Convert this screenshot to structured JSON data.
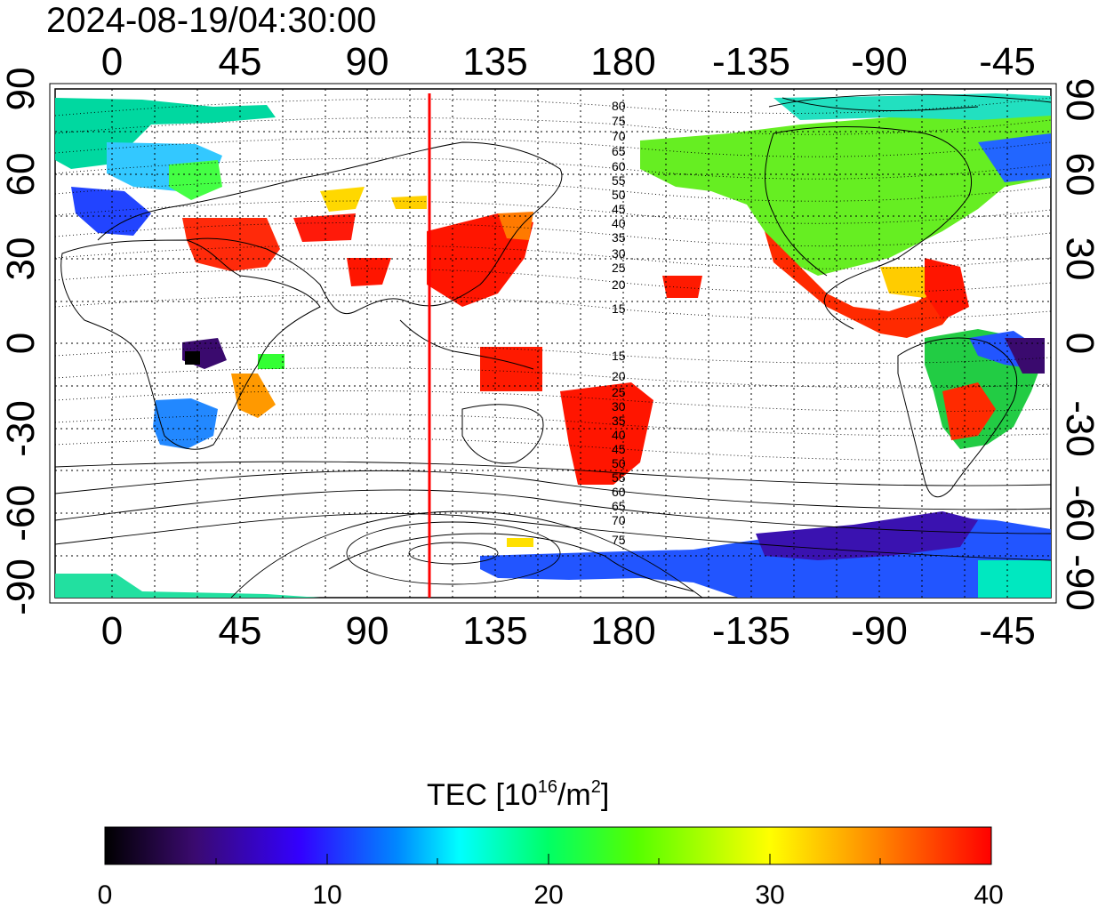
{
  "title": "2024-08-19/04:30:00",
  "map": {
    "top_lon_ticks": [
      "0",
      "45",
      "90",
      "135",
      "180",
      "-135",
      "-90",
      "-45"
    ],
    "bottom_lon_ticks": [
      "0",
      "45",
      "90",
      "135",
      "180",
      "-135",
      "-90",
      "-45"
    ],
    "left_lat_ticks": [
      "90",
      "60",
      "30",
      "0",
      "-30",
      "-60",
      "-90"
    ],
    "right_lat_ticks": [
      "90",
      "60",
      "30",
      "0",
      "-30",
      "-60",
      "-90"
    ],
    "magnetic_lat_labels_north": [
      "80",
      "75",
      "70",
      "65",
      "60",
      "55",
      "50",
      "45",
      "40",
      "35",
      "30",
      "25",
      "20",
      "15"
    ],
    "magnetic_lat_labels_south": [
      "15",
      "20",
      "25",
      "30",
      "35",
      "40",
      "45",
      "50",
      "55",
      "60",
      "65",
      "70",
      "75"
    ],
    "marker_longitude": 111,
    "marker_color": "#ff0000"
  },
  "colorbar": {
    "title_main": "TEC  [10",
    "title_sup1": "16",
    "title_mid": "/m",
    "title_sup2": "2",
    "title_end": "]",
    "tick_labels": [
      "0",
      "10",
      "20",
      "30",
      "40"
    ],
    "min": 0,
    "max": 40,
    "colors": [
      "#000000",
      "#3a0a6e",
      "#3300ff",
      "#0088ff",
      "#00ffff",
      "#00ff66",
      "#55ff00",
      "#ffff00",
      "#ff8800",
      "#ff0000"
    ]
  }
}
